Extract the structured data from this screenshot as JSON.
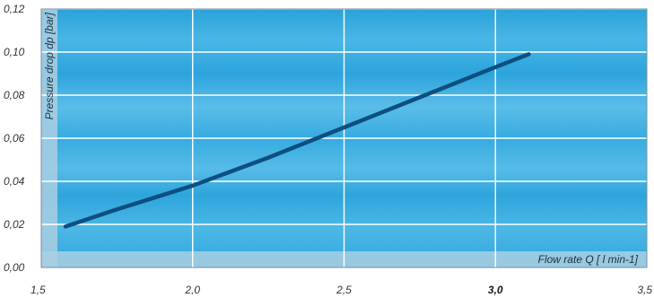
{
  "chart_data": {
    "type": "line",
    "xlabel": "Flow rate  Q [ l min-1]",
    "ylabel": "Pressure drop dp [bar]",
    "xlim": [
      1.5,
      3.5
    ],
    "ylim": [
      0.0,
      0.12
    ],
    "x_ticks": [
      "1,5",
      "2,0",
      "2,5",
      "3,0",
      "3,5"
    ],
    "y_ticks": [
      "0,00",
      "0,02",
      "0,04",
      "0,06",
      "0,08",
      "0,10",
      "0,12"
    ],
    "grid": true,
    "series": [
      {
        "x": [
          1.58,
          1.75,
          2.0,
          2.25,
          2.5,
          2.75,
          3.0,
          3.11
        ],
        "y": [
          0.019,
          0.027,
          0.038,
          0.051,
          0.065,
          0.079,
          0.093,
          0.099
        ]
      }
    ],
    "colors": {
      "line": "#0d4f80",
      "background": "#2fa8df",
      "grid": "#ffffff",
      "axis_band": "#a7cde0"
    }
  }
}
